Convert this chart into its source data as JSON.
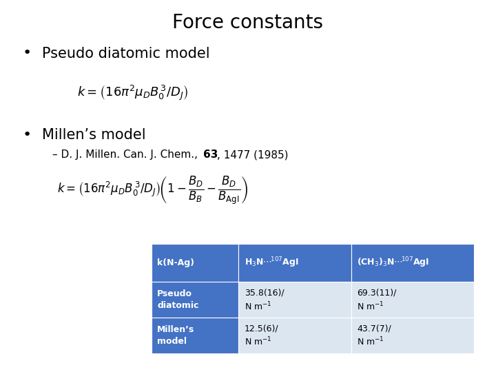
{
  "title": "Force constants",
  "title_fontsize": 20,
  "background_color": "#ffffff",
  "bullet1": "Pseudo diatomic model",
  "bullet1_fontsize": 15,
  "bullet2": "Millen’s model",
  "bullet2_fontsize": 15,
  "subbullet2_fontsize": 11,
  "table_header_bg": "#4472C4",
  "table_header_fg": "#ffffff",
  "table_col1_bg": "#4472C4",
  "table_col1_fg": "#ffffff",
  "table_data_bg": "#dce6f1",
  "row_labels": [
    "Pseudo\ndiatomic",
    "Millen’s\nmodel"
  ],
  "data_col2_line1": [
    "35.8(16)/",
    "12.5(6)/"
  ],
  "data_col3_line1": [
    "69.3(11)/",
    "43.7(7)/"
  ],
  "nm_label": "N m⁻¹"
}
